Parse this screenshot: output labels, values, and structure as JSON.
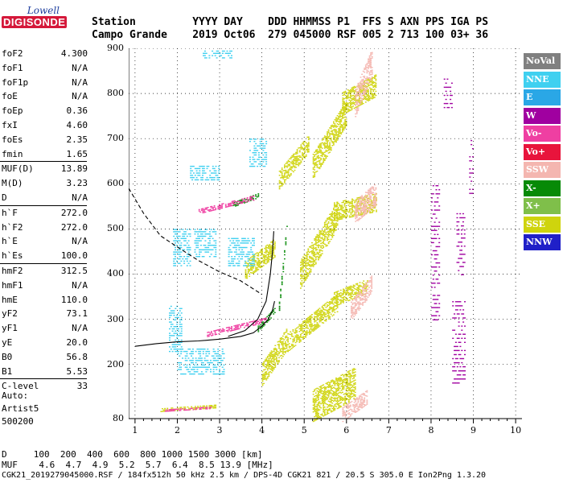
{
  "logo": {
    "line1": "Lowell",
    "line2": "DIGISONDE"
  },
  "header": {
    "row1": "Station         YYYY DAY    DDD HHMMSS P1  FFS S AXN PPS IGA PS",
    "row2": "Campo Grande    2019 Oct06  279 045000 RSF 005 2 713 100 03+ 36"
  },
  "params": [
    {
      "name": "foF2",
      "value": "4.300"
    },
    {
      "name": "foF1",
      "value": "N/A"
    },
    {
      "name": "foF1p",
      "value": "N/A"
    },
    {
      "name": "foE",
      "value": "N/A"
    },
    {
      "name": "foEp",
      "value": "0.36"
    },
    {
      "name": "fxI",
      "value": "4.60"
    },
    {
      "name": "foEs",
      "value": "2.35"
    },
    {
      "name": "fmin",
      "value": "1.65"
    },
    {
      "name": "MUF(D)",
      "value": "13.89",
      "sep": true
    },
    {
      "name": "M(D)",
      "value": "3.23"
    },
    {
      "name": "D",
      "value": "N/A"
    },
    {
      "name": "h`F",
      "value": "272.0",
      "sep": true
    },
    {
      "name": "h`F2",
      "value": "272.0"
    },
    {
      "name": "h`E",
      "value": "N/A"
    },
    {
      "name": "h`Es",
      "value": "100.0"
    },
    {
      "name": "hmF2",
      "value": "312.5",
      "sep": true
    },
    {
      "name": "hmF1",
      "value": "N/A"
    },
    {
      "name": "hmE",
      "value": "110.0"
    },
    {
      "name": "yF2",
      "value": "73.1"
    },
    {
      "name": "yF1",
      "value": "N/A"
    },
    {
      "name": "yE",
      "value": "20.0"
    },
    {
      "name": "B0",
      "value": "56.8"
    },
    {
      "name": "B1",
      "value": "5.53"
    },
    {
      "name": "C-level",
      "value": "33",
      "sep": true
    }
  ],
  "auto": {
    "line1": "Auto:",
    "line2": "Artist5",
    "line3": "500200"
  },
  "legend": [
    {
      "label": "NoVal",
      "color": "#808080"
    },
    {
      "label": "NNE",
      "color": "#3fd0f0"
    },
    {
      "label": "E",
      "color": "#2aa7e6"
    },
    {
      "label": "W",
      "color": "#a000a0"
    },
    {
      "label": "Vo-",
      "color": "#ef3fa2"
    },
    {
      "label": "Vo+",
      "color": "#e8143c"
    },
    {
      "label": "SSW",
      "color": "#f4b6b0"
    },
    {
      "label": "X-",
      "color": "#078a07"
    },
    {
      "label": "X+",
      "color": "#7fbf4a"
    },
    {
      "label": "SSE",
      "color": "#cfd40d"
    },
    {
      "label": "NNW",
      "color": "#2020c8"
    }
  ],
  "bottom": {
    "d_row": "D     100  200  400  600  800 1000 1500 3000 [km]",
    "muf_row": "MUF    4.6  4.7  4.9  5.2  5.7  6.4  8.5 13.9 [MHz]"
  },
  "footer": "CGK21_2019279045000.RSF / 184fx512h 50 kHz 2.5 km / DPS-4D CGK21 821 / 20.5 S 305.0 E Ion2Png 1.3.20",
  "chart_data": {
    "type": "scatter",
    "title": "",
    "xlabel": "",
    "ylabel": "",
    "x_ticks": [
      "1",
      "2",
      "3",
      "4",
      "5",
      "6",
      "7",
      "8",
      "9",
      "10"
    ],
    "y_ticks": [
      "80",
      "200",
      "300",
      "400",
      "500",
      "600",
      "700",
      "800",
      "900"
    ],
    "xlim": [
      0.85,
      10.15
    ],
    "ylim": [
      80,
      900
    ],
    "grid": true,
    "legend_position": "right",
    "traces": [
      {
        "name": "virtual-height-trace",
        "color": "#000000",
        "style": "solid",
        "x": [
          1.0,
          1.5,
          2.0,
          2.5,
          3.0,
          3.5,
          3.8,
          4.0,
          4.15,
          4.25,
          4.3
        ],
        "y": [
          240,
          246,
          250,
          252,
          256,
          262,
          270,
          285,
          300,
          320,
          340
        ]
      },
      {
        "name": "profile-trace",
        "color": "#000000",
        "style": "solid",
        "x": [
          3.2,
          3.6,
          3.9,
          4.1,
          4.2,
          4.25,
          4.28
        ],
        "y": [
          262,
          275,
          300,
          340,
          400,
          450,
          495
        ]
      },
      {
        "name": "dashed-trace",
        "color": "#000000",
        "style": "dashed",
        "x": [
          0.85,
          1.2,
          1.6,
          2.0,
          2.5,
          3.0,
          3.5,
          4.0
        ],
        "y": [
          590,
          535,
          485,
          460,
          430,
          405,
          385,
          355
        ]
      }
    ]
  }
}
